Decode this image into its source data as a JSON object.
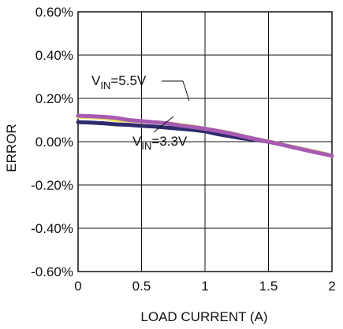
{
  "chart_data": {
    "type": "line",
    "title": "",
    "xlabel": "LOAD CURRENT (A)",
    "ylabel": "ERROR",
    "xlim": [
      0,
      2
    ],
    "ylim": [
      -0.6,
      0.6
    ],
    "x_ticks": [
      0,
      0.5,
      1,
      1.5,
      2
    ],
    "x_tick_labels": [
      "0",
      "0.5",
      "1",
      "1.5",
      "2"
    ],
    "y_ticks": [
      0.6,
      0.4,
      0.2,
      0.0,
      -0.2,
      -0.4,
      -0.6
    ],
    "y_tick_labels": [
      "0.60%",
      "0.40%",
      "0.20%",
      "0.00%",
      "-0.20%",
      "-0.40%",
      "-0.60%"
    ],
    "grid": true,
    "legend": "none",
    "series": [
      {
        "color": "#2e2b6e",
        "x": [
          0,
          0.1,
          0.2,
          0.3,
          0.4,
          0.5,
          0.6,
          0.7,
          0.8,
          0.9,
          1.0,
          1.1,
          1.2,
          1.3,
          1.4,
          1.5,
          1.6,
          1.7,
          1.8,
          1.9,
          2.0
        ],
        "y": [
          0.09,
          0.088,
          0.085,
          0.08,
          0.078,
          0.073,
          0.07,
          0.065,
          0.06,
          0.055,
          0.048,
          0.035,
          0.025,
          0.015,
          0.008,
          0.0,
          -0.013,
          -0.025,
          -0.038,
          -0.05,
          -0.065
        ]
      },
      {
        "color": "#e8e05a",
        "x": [
          0,
          0.1,
          0.2,
          0.3,
          0.4,
          0.5,
          0.6,
          0.7,
          0.8,
          0.9,
          1.0,
          1.1,
          1.2,
          1.3,
          1.4,
          1.5,
          1.6,
          1.7,
          1.8,
          1.9,
          2.0
        ],
        "y": [
          0.115,
          0.113,
          0.11,
          0.1,
          0.097,
          0.094,
          0.09,
          0.085,
          0.078,
          0.07,
          0.06,
          0.05,
          0.04,
          0.025,
          0.012,
          0.002,
          -0.012,
          -0.025,
          -0.038,
          -0.05,
          -0.065
        ]
      },
      {
        "color": "#a75bb3",
        "x": [
          0,
          0.1,
          0.2,
          0.3,
          0.4,
          0.5,
          0.6,
          0.7,
          0.8,
          0.9,
          1.0,
          1.1,
          1.2,
          1.3,
          1.4,
          1.5,
          1.6,
          1.7,
          1.8,
          1.9,
          2.0
        ],
        "y": [
          0.12,
          0.118,
          0.115,
          0.11,
          0.1,
          0.095,
          0.09,
          0.085,
          0.075,
          0.068,
          0.06,
          0.05,
          0.038,
          0.025,
          0.012,
          0.0,
          -0.013,
          -0.027,
          -0.04,
          -0.053,
          -0.065
        ]
      }
    ],
    "annotations": [
      {
        "label_main": "V",
        "label_sub": "IN",
        "label_tail": "=5.5V"
      },
      {
        "label_main": "V",
        "label_sub": "IN",
        "label_tail": "=3.3V"
      }
    ]
  }
}
